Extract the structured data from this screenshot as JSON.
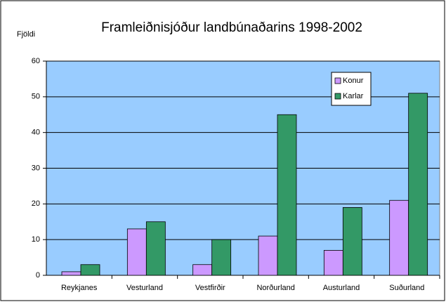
{
  "chart_data": {
    "type": "bar",
    "title": "Framleiðnisjóður landbúnaðarins 1998-2002",
    "y_label": "Fjöldi",
    "categories": [
      "Reykjanes",
      "Vesturland",
      "Vestfirðir",
      "Norðurland",
      "Austurland",
      "Suðurland"
    ],
    "series": [
      {
        "name": "Konur",
        "color": "#cc99ff",
        "values": [
          1,
          13,
          3,
          11,
          7,
          21
        ]
      },
      {
        "name": "Karlar",
        "color": "#339966",
        "values": [
          3,
          15,
          10,
          45,
          19,
          51
        ]
      }
    ],
    "ylim": [
      0,
      60
    ],
    "yticks": [
      0,
      10,
      20,
      30,
      40,
      50,
      60
    ],
    "grid": true,
    "legend": "top-right",
    "plot_background": "#99ccff"
  }
}
